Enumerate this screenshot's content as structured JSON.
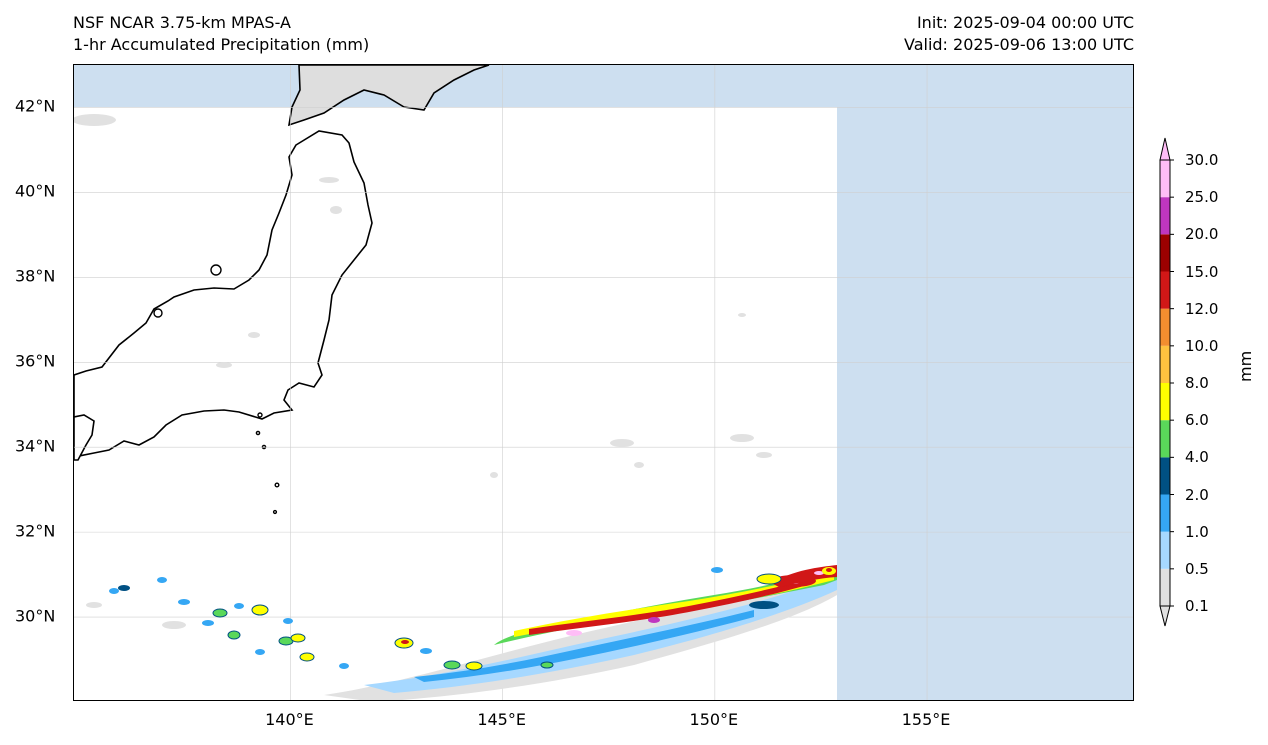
{
  "header": {
    "model": "NSF NCAR 3.75-km MPAS-A",
    "field": "1-hr Accumulated Precipitation (mm)",
    "init": "Init: 2025-09-04 00:00 UTC",
    "valid": "Valid: 2025-09-06 13:00 UTC"
  },
  "map": {
    "lon_range": [
      134.9,
      159.9
    ],
    "lat_range": [
      28.0,
      43.0
    ],
    "lat_ticks": [
      {
        "value": 42,
        "label": "42°N"
      },
      {
        "value": 40,
        "label": "40°N"
      },
      {
        "value": 38,
        "label": "38°N"
      },
      {
        "value": 36,
        "label": "36°N"
      },
      {
        "value": 34,
        "label": "34°N"
      },
      {
        "value": 32,
        "label": "32°N"
      },
      {
        "value": 30,
        "label": "30°N"
      }
    ],
    "lon_ticks": [
      {
        "value": 140,
        "label": "140°E"
      },
      {
        "value": 145,
        "label": "145°E"
      },
      {
        "value": 150,
        "label": "150°E"
      },
      {
        "value": 155,
        "label": "155°E"
      }
    ],
    "colors": {
      "no_data": "#cddff0",
      "land_outside": "#dedede",
      "coastline": "#000000",
      "gridline": "#cfcfcf"
    }
  },
  "colorbar": {
    "unit": "mm",
    "levels": [
      "0.1",
      "0.5",
      "1.0",
      "2.0",
      "4.0",
      "6.0",
      "8.0",
      "10.0",
      "12.0",
      "15.0",
      "20.0",
      "25.0",
      "30.0"
    ],
    "colors": [
      "#e1e1e1",
      "#a6d8ff",
      "#35a7f4",
      "#005083",
      "#5ad85a",
      "#ffff00",
      "#ffc23f",
      "#f38e2f",
      "#d11717",
      "#9b0000",
      "#bf36c0",
      "#ffbdf7"
    ]
  }
}
